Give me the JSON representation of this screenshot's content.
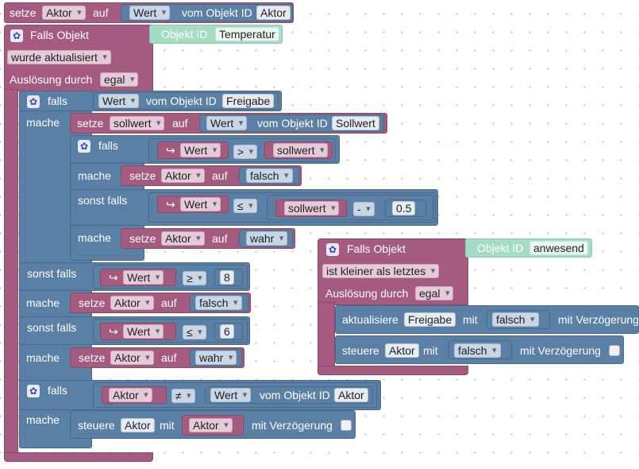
{
  "colors": {
    "logic_pink": "#a55b80",
    "logic_blue": "#5b80a5",
    "id_green": "#a5dcc3"
  },
  "top": {
    "setze": "setze",
    "target": "Aktor",
    "auf": "auf",
    "value": "Wert",
    "vom": "vom Objekt ID",
    "id": "Aktor"
  },
  "trigger1": {
    "title": "Falls Objekt",
    "objlabel": "Objekt ID",
    "objid": "Temperatur",
    "cond": "wurde aktualisiert",
    "ausl": "Auslösung durch",
    "ausl_val": "egal"
  },
  "if1": {
    "falls": "falls",
    "value": "Wert",
    "vom": "vom Objekt ID",
    "id": "Freigabe",
    "mache": "mache"
  },
  "set_soll": {
    "setze": "setze",
    "var": "sollwert",
    "auf": "auf",
    "value": "Wert",
    "vom": "vom Objekt ID",
    "id": "Sollwert"
  },
  "if2": {
    "falls": "falls",
    "ret": "↪",
    "value": "Wert",
    "op": ">",
    "var": "sollwert",
    "mache": "mache",
    "setze": "setze",
    "target": "Aktor",
    "auf": "auf",
    "v1": "falsch",
    "sonst_falls": "sonst falls",
    "op2": "≤",
    "var2": "sollwert",
    "minus": "-",
    "num": "0.5",
    "mache2": "mache",
    "v2": "wahr"
  },
  "elif_a": {
    "label": "sonst falls",
    "value": "Wert",
    "op": "≥",
    "num": "8",
    "mache": "mache",
    "setze": "setze",
    "target": "Aktor",
    "auf": "auf",
    "v": "falsch"
  },
  "elif_b": {
    "label": "sonst falls",
    "value": "Wert",
    "op": "≤",
    "num": "6",
    "mache": "mache",
    "setze": "setze",
    "target": "Aktor",
    "auf": "auf",
    "v": "wahr"
  },
  "if3": {
    "falls": "falls",
    "var": "Aktor",
    "op": "≠",
    "value": "Wert",
    "vom": "vom Objekt ID",
    "id": "Aktor",
    "mache": "mache",
    "steuere": "steuere",
    "target": "Aktor",
    "mit": "mit",
    "var2": "Aktor",
    "delay": "mit Verzögerung"
  },
  "trigger2": {
    "title": "Falls Objekt",
    "objlabel": "Objekt ID",
    "objid": "anwesend",
    "cond": "ist kleiner als letztes",
    "ausl": "Auslösung durch",
    "ausl_val": "egal",
    "upd": "aktualisiere",
    "upd_target": "Freigabe",
    "mit": "mit",
    "v1": "falsch",
    "delay": "mit Verzögerung",
    "steuere": "steuere",
    "st_target": "Aktor",
    "mit2": "mit",
    "v2": "falsch",
    "delay2": "mit Verzögerung"
  }
}
